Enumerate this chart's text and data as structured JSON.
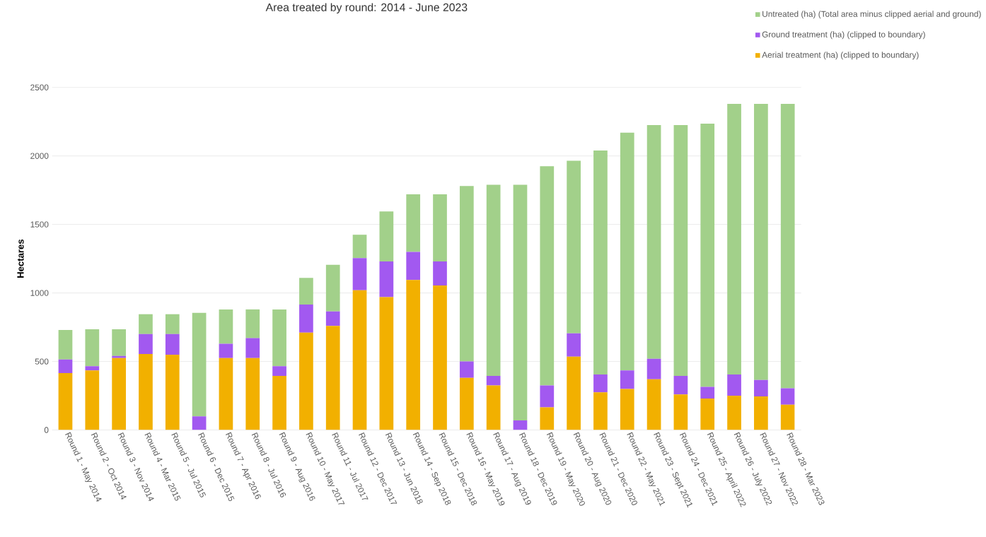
{
  "chart_data": {
    "type": "bar",
    "title": "Area treated by round: 2014 - June 2023",
    "ylabel": "Hectares",
    "categories": [
      "Round 1 - May 2014",
      "Round 2 - Oct 2014",
      "Round 3 - Nov 2014",
      "Round 4 - Mar 2015",
      "Round 5 - Jul 2015",
      "Round 6 - Dec 2015",
      "Round 7 - Apr 2016",
      "Round 8 - Jul 2016",
      "Round 9 - Aug 2016",
      "Round 10 - May 2017",
      "Round 11 - Jul 2017",
      "Round 12 - Dec 2017",
      "Round 13 - Jun 2018",
      "Round 14 - Sep 2018",
      "Round 15 - Dec 2018",
      "Round 16 - May 2019",
      "Round 17 - Aug 2019",
      "Round 18 - Dec 2019",
      "Round 19 - May 2020",
      "Round 20 - Aug 2020",
      "Round 21 - Dec 2020",
      "Round 22 - May 2021",
      "Round 23 - Sept 2021",
      "Round 24 - Dec 2021",
      "Round 25 - April 2022",
      "Round 26 - July 2022",
      "Round 27 - Nov 2022",
      "Round 28 - Mar 2023"
    ],
    "series": [
      {
        "name": "Aerial treatment (ha) (clipped to boundary)",
        "color": "#f2b000",
        "values": [
          415,
          435,
          525,
          555,
          550,
          0,
          525,
          525,
          395,
          710,
          760,
          1020,
          970,
          1095,
          1055,
          380,
          325,
          0,
          165,
          535,
          275,
          300,
          370,
          260,
          230,
          250,
          245,
          185
        ]
      },
      {
        "name": "Ground treatment (ha) (clipped to boundary)",
        "color": "#a259f0",
        "values": [
          100,
          30,
          15,
          145,
          150,
          100,
          105,
          145,
          70,
          205,
          105,
          235,
          260,
          205,
          175,
          120,
          70,
          70,
          160,
          170,
          130,
          135,
          150,
          135,
          85,
          155,
          120,
          120
        ]
      },
      {
        "name": "Untreated (ha) (Total area minus clipped aerial and ground)",
        "color": "#a2d08a",
        "values": [
          215,
          270,
          195,
          145,
          145,
          755,
          250,
          210,
          415,
          195,
          340,
          170,
          365,
          420,
          490,
          1280,
          1395,
          1720,
          1600,
          1260,
          1635,
          1735,
          1705,
          1830,
          1920,
          1975,
          2015,
          2075
        ]
      }
    ],
    "stacked": true,
    "ylim": [
      0,
      2500
    ],
    "yticks": [
      0,
      500,
      1000,
      1500,
      2000,
      2500
    ],
    "grid": "y",
    "legend": "top right"
  }
}
